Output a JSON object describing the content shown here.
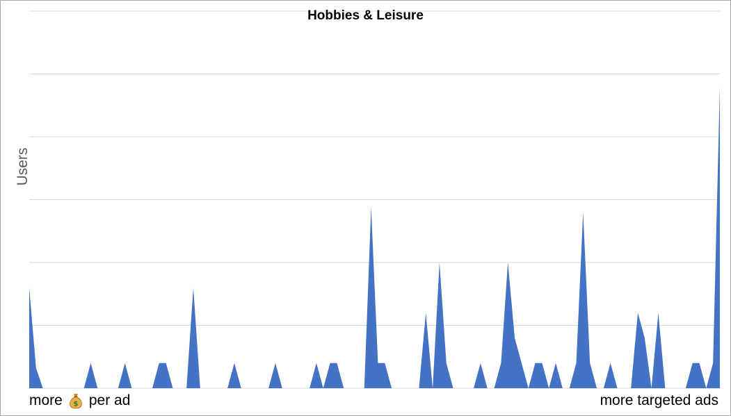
{
  "chart_data": {
    "type": "area",
    "title": "Hobbies & Leisure",
    "ylabel": "Users",
    "xlabel_left": "more",
    "xlabel_left_icon": "money-bag-icon",
    "xlabel_left_suffix": "per ad",
    "xlabel_right": "more targeted ads",
    "grid": true,
    "ylim": [
      0,
      7.5
    ],
    "series_color": "#4472c4",
    "values": [
      2,
      0.4,
      0,
      0,
      0,
      0,
      0,
      0,
      0,
      0.5,
      0,
      0,
      0,
      0,
      0.5,
      0,
      0,
      0,
      0,
      0.5,
      0.5,
      0,
      0,
      0,
      2,
      0,
      0,
      0,
      0,
      0,
      0.5,
      0,
      0,
      0,
      0,
      0,
      0.5,
      0,
      0,
      0,
      0,
      0,
      0.5,
      0,
      0.5,
      0.5,
      0,
      0,
      0,
      0,
      3.6,
      0.5,
      0.5,
      0,
      0,
      0,
      0,
      0,
      1.5,
      0,
      2.5,
      0.5,
      0,
      0,
      0,
      0,
      0.5,
      0,
      0,
      0.5,
      2.5,
      1,
      0.5,
      0,
      0.5,
      0.5,
      0,
      0.5,
      0,
      0,
      0.5,
      3.5,
      0.5,
      0,
      0,
      0.5,
      0,
      0,
      0,
      1.5,
      1,
      0,
      1.5,
      0,
      0,
      0,
      0,
      0.5,
      0.5,
      0,
      0.5,
      6
    ]
  }
}
